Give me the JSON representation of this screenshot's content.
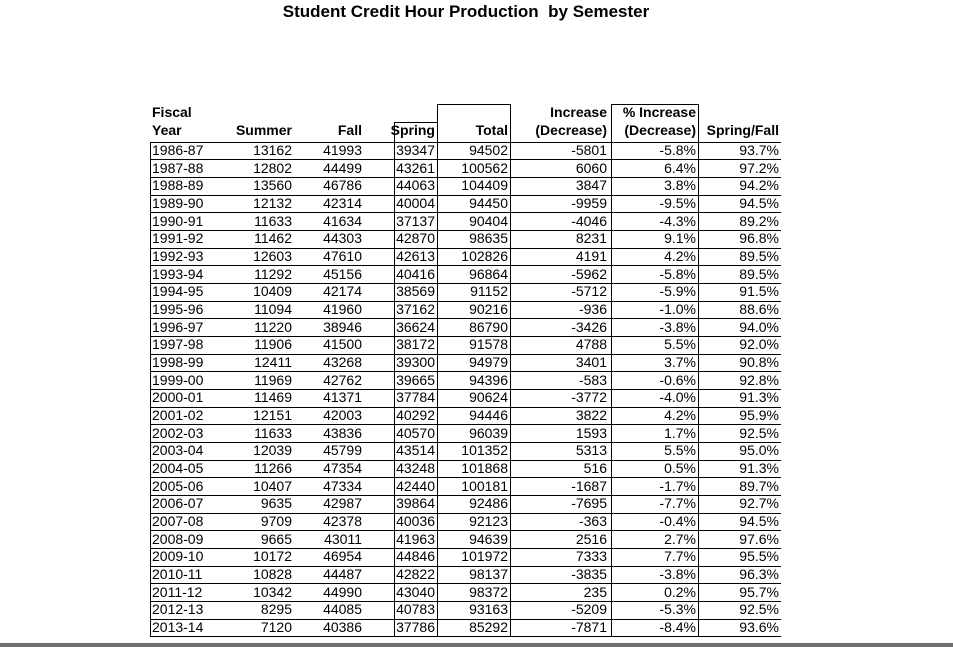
{
  "title": "Student Credit Hour Production  by Semester",
  "table": {
    "columns": [
      [
        "Fiscal",
        "Year"
      ],
      [
        "Summer"
      ],
      [
        "Fall"
      ],
      [
        "Spring"
      ],
      [
        "Total"
      ],
      [
        "Increase",
        "(Decrease)"
      ],
      [
        "% Increase",
        "(Decrease)"
      ],
      [
        "Spring/Fall"
      ]
    ],
    "rows": [
      [
        "1986-87",
        "13162",
        "41993",
        "39347",
        "94502",
        "-5801",
        "-5.8%",
        "93.7%"
      ],
      [
        "1987-88",
        "12802",
        "44499",
        "43261",
        "100562",
        "6060",
        "6.4%",
        "97.2%"
      ],
      [
        "1988-89",
        "13560",
        "46786",
        "44063",
        "104409",
        "3847",
        "3.8%",
        "94.2%"
      ],
      [
        "1989-90",
        "12132",
        "42314",
        "40004",
        "94450",
        "-9959",
        "-9.5%",
        "94.5%"
      ],
      [
        "1990-91",
        "11633",
        "41634",
        "37137",
        "90404",
        "-4046",
        "-4.3%",
        "89.2%"
      ],
      [
        "1991-92",
        "11462",
        "44303",
        "42870",
        "98635",
        "8231",
        "9.1%",
        "96.8%"
      ],
      [
        "1992-93",
        "12603",
        "47610",
        "42613",
        "102826",
        "4191",
        "4.2%",
        "89.5%"
      ],
      [
        "1993-94",
        "11292",
        "45156",
        "40416",
        "96864",
        "-5962",
        "-5.8%",
        "89.5%"
      ],
      [
        "1994-95",
        "10409",
        "42174",
        "38569",
        "91152",
        "-5712",
        "-5.9%",
        "91.5%"
      ],
      [
        "1995-96",
        "11094",
        "41960",
        "37162",
        "90216",
        "-936",
        "-1.0%",
        "88.6%"
      ],
      [
        "1996-97",
        "11220",
        "38946",
        "36624",
        "86790",
        "-3426",
        "-3.8%",
        "94.0%"
      ],
      [
        "1997-98",
        "11906",
        "41500",
        "38172",
        "91578",
        "4788",
        "5.5%",
        "92.0%"
      ],
      [
        "1998-99",
        "12411",
        "43268",
        "39300",
        "94979",
        "3401",
        "3.7%",
        "90.8%"
      ],
      [
        "1999-00",
        "11969",
        "42762",
        "39665",
        "94396",
        "-583",
        "-0.6%",
        "92.8%"
      ],
      [
        "2000-01",
        "11469",
        "41371",
        "37784",
        "90624",
        "-3772",
        "-4.0%",
        "91.3%"
      ],
      [
        "2001-02",
        "12151",
        "42003",
        "40292",
        "94446",
        "3822",
        "4.2%",
        "95.9%"
      ],
      [
        "2002-03",
        "11633",
        "43836",
        "40570",
        "96039",
        "1593",
        "1.7%",
        "92.5%"
      ],
      [
        "2003-04",
        "12039",
        "45799",
        "43514",
        "101352",
        "5313",
        "5.5%",
        "95.0%"
      ],
      [
        "2004-05",
        "11266",
        "47354",
        "43248",
        "101868",
        "516",
        "0.5%",
        "91.3%"
      ],
      [
        "2005-06",
        "10407",
        "47334",
        "42440",
        "100181",
        "-1687",
        "-1.7%",
        "89.7%"
      ],
      [
        "2006-07",
        "9635",
        "42987",
        "39864",
        "92486",
        "-7695",
        "-7.7%",
        "92.7%"
      ],
      [
        "2007-08",
        "9709",
        "42378",
        "40036",
        "92123",
        "-363",
        "-0.4%",
        "94.5%"
      ],
      [
        "2008-09",
        "9665",
        "43011",
        "41963",
        "94639",
        "2516",
        "2.7%",
        "97.6%"
      ],
      [
        "2009-10",
        "10172",
        "46954",
        "44846",
        "101972",
        "7333",
        "7.7%",
        "95.5%"
      ],
      [
        "2010-11",
        "10828",
        "44487",
        "42822",
        "98137",
        "-3835",
        "-3.8%",
        "96.3%"
      ],
      [
        "2011-12",
        "10342",
        "44990",
        "43040",
        "98372",
        "235",
        "0.2%",
        "95.7%"
      ],
      [
        "2012-13",
        "8295",
        "44085",
        "40783",
        "93163",
        "-5209",
        "-5.3%",
        "92.5%"
      ],
      [
        "2013-14",
        "7120",
        "40386",
        "37786",
        "85292",
        "-7871",
        "-8.4%",
        "93.6%"
      ]
    ]
  }
}
